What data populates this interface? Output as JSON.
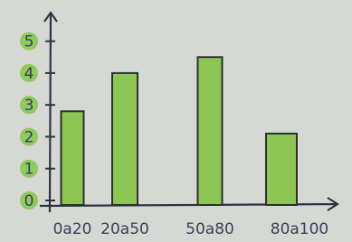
{
  "chart_data": {
    "type": "bar",
    "categories": [
      "0a20",
      "20a50",
      "50a80",
      "80a100"
    ],
    "values": [
      2.8,
      4,
      4.5,
      2.1
    ],
    "color": "#8dc653",
    "ylim": [
      0,
      5.5
    ],
    "yticks": [
      0,
      1,
      2,
      3,
      4,
      5
    ],
    "grid": false
  }
}
